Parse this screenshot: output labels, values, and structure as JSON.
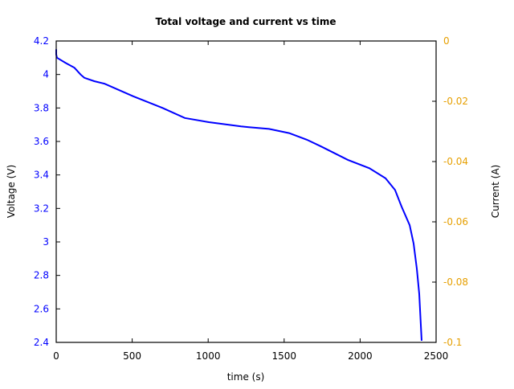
{
  "chart_data": {
    "type": "line",
    "title": "Total voltage and current vs time",
    "xlabel": "time (s)",
    "ylabel": "Voltage (V)",
    "y2label": "Current (A)",
    "xlim": [
      0,
      2500
    ],
    "ylim": [
      2.4,
      4.2
    ],
    "y2lim": [
      -0.1,
      0
    ],
    "x_ticks": [
      "0",
      "500",
      "1000",
      "1500",
      "2000",
      "2500"
    ],
    "y_ticks": [
      "2.4",
      "2.6",
      "2.8",
      "3",
      "3.2",
      "3.4",
      "3.6",
      "3.8",
      "4",
      "4.2"
    ],
    "y2_ticks": [
      "-0.1",
      "-0.08",
      "-0.06",
      "-0.04",
      "-0.02",
      "0"
    ],
    "grid": false,
    "legend": null,
    "series": [
      {
        "name": "Voltage",
        "axis": "left",
        "color": "#0000ff",
        "x": [
          0,
          0,
          5,
          60,
          120,
          160,
          185,
          250,
          317,
          507,
          700,
          846,
          1004,
          1216,
          1268,
          1400,
          1533,
          1650,
          1744,
          1919,
          2061,
          2167,
          2230,
          2273,
          2326,
          2352,
          2373,
          2389,
          2405
        ],
        "y": [
          4.15,
          4.12,
          4.1,
          4.07,
          4.04,
          4.0,
          3.98,
          3.96,
          3.945,
          3.87,
          3.8,
          3.74,
          3.715,
          3.69,
          3.685,
          3.675,
          3.65,
          3.61,
          3.57,
          3.49,
          3.44,
          3.38,
          3.31,
          3.21,
          3.1,
          2.99,
          2.84,
          2.69,
          2.41
        ]
      }
    ]
  },
  "colors": {
    "left_axis": "#0000ff",
    "right_axis": "#e69f00",
    "text": "#000000"
  }
}
